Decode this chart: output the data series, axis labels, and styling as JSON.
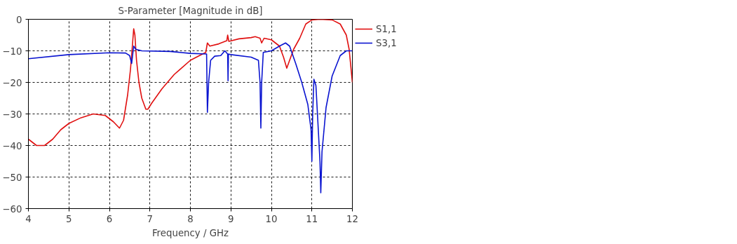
{
  "chart_data": {
    "type": "line",
    "title": "S-Parameter [Magnitude in dB]",
    "xlabel": "Frequency / GHz",
    "xlim": [
      4,
      12
    ],
    "xticks": [
      4,
      5,
      6,
      7,
      8,
      9,
      10,
      11,
      12
    ],
    "ylim": [
      -60,
      0
    ],
    "yticks": [
      -60,
      -50,
      -40,
      -30,
      -20,
      -10,
      0
    ],
    "grid": true,
    "legend": "top right",
    "line_style": "solid",
    "marker": "none",
    "series": [
      {
        "name": "S1,1",
        "color": "#e01010",
        "x": [
          4.0,
          4.2,
          4.4,
          4.6,
          4.8,
          5.0,
          5.3,
          5.6,
          5.9,
          6.1,
          6.25,
          6.35,
          6.45,
          6.52,
          6.57,
          6.6,
          6.63,
          6.67,
          6.73,
          6.8,
          6.9,
          6.95,
          7.05,
          7.3,
          7.6,
          8.0,
          8.3,
          8.38,
          8.42,
          8.48,
          8.7,
          8.9,
          8.92,
          8.95,
          9.2,
          9.5,
          9.6,
          9.72,
          9.76,
          9.82,
          10.0,
          10.2,
          10.3,
          10.38,
          10.45,
          10.55,
          10.7,
          10.85,
          11.0,
          11.2,
          11.5,
          11.7,
          11.85,
          11.92,
          12.0
        ],
        "values": [
          -38,
          -40,
          -40,
          -38,
          -35,
          -33,
          -31.2,
          -30,
          -30.5,
          -32.5,
          -34.5,
          -32,
          -24,
          -16,
          -8,
          -3,
          -5,
          -13,
          -20,
          -25,
          -28.5,
          -28.5,
          -26.5,
          -22,
          -17.5,
          -13,
          -11,
          -10.5,
          -7.5,
          -8.5,
          -7.8,
          -6.8,
          -5,
          -7,
          -6.2,
          -5.8,
          -5.5,
          -6,
          -7.5,
          -6,
          -6.5,
          -8.5,
          -12,
          -15.5,
          -13,
          -9.5,
          -6,
          -1.5,
          -0.2,
          0,
          -0.2,
          -1.5,
          -5,
          -9.5,
          -20
        ]
      },
      {
        "name": "S3,1",
        "color": "#0a14d0",
        "x": [
          4.0,
          5.0,
          6.0,
          6.4,
          6.5,
          6.55,
          6.6,
          6.65,
          6.8,
          7.5,
          8.0,
          8.4,
          8.42,
          8.45,
          8.5,
          8.6,
          8.75,
          8.85,
          8.92,
          8.93,
          8.94,
          9.0,
          9.5,
          9.68,
          9.72,
          9.74,
          9.76,
          9.8,
          10.0,
          10.2,
          10.35,
          10.45,
          10.6,
          10.75,
          10.9,
          10.98,
          11.0,
          11.02,
          11.05,
          11.1,
          11.15,
          11.2,
          11.22,
          11.25,
          11.35,
          11.5,
          11.7,
          11.85,
          12.0
        ],
        "values": [
          -12.5,
          -11.2,
          -10.6,
          -10.7,
          -11.5,
          -14,
          -8.5,
          -9.5,
          -10,
          -10.2,
          -10.8,
          -11,
          -29.5,
          -20,
          -13,
          -11.7,
          -11.5,
          -10,
          -11,
          -19.5,
          -11,
          -11.2,
          -12,
          -13,
          -20,
          -34.5,
          -20,
          -10.5,
          -10,
          -8.5,
          -7.5,
          -8.5,
          -14,
          -20,
          -27,
          -35,
          -45,
          -30,
          -19,
          -21,
          -33,
          -45,
          -55,
          -42,
          -28,
          -18,
          -11.5,
          -10,
          -10
        ]
      }
    ]
  }
}
